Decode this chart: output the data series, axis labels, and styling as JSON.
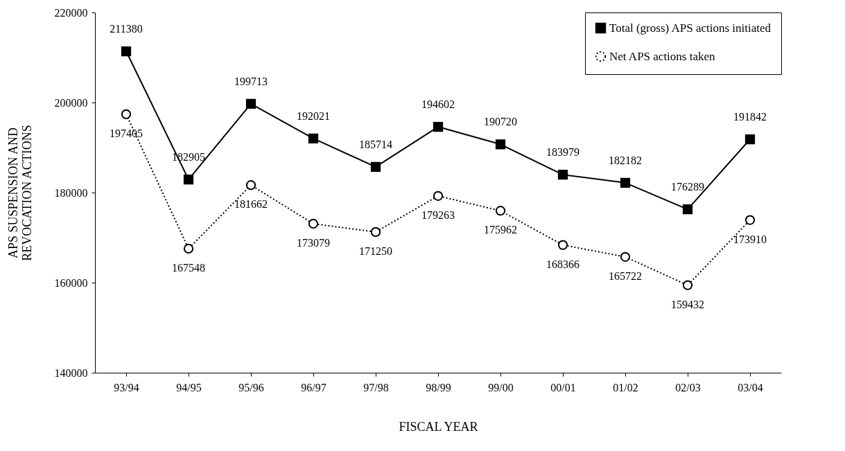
{
  "chart_data": {
    "type": "line",
    "xlabel": "FISCAL YEAR",
    "ylabel": "APS SUSPENSION AND\nREVOCATION ACTIONS",
    "categories": [
      "93/94",
      "94/95",
      "95/96",
      "96/97",
      "97/98",
      "98/99",
      "99/00",
      "00/01",
      "01/02",
      "02/03",
      "03/04"
    ],
    "series": [
      {
        "name": "Total (gross) APS actions initiated",
        "color": "#000000",
        "marker": "square",
        "line_style": "solid",
        "values": [
          211380,
          182905,
          199713,
          192021,
          185714,
          194602,
          190720,
          183979,
          182182,
          176289,
          191842
        ]
      },
      {
        "name": "Net APS actions taken",
        "color": "#000000",
        "marker": "circle",
        "line_style": "dotted",
        "values": [
          197405,
          167548,
          181662,
          173079,
          171250,
          179263,
          175962,
          168366,
          165722,
          159432,
          173910
        ]
      }
    ],
    "ylim": [
      140000,
      220000
    ],
    "yticks": [
      140000,
      160000,
      180000,
      200000,
      220000
    ],
    "grid": false,
    "legend": "top right",
    "data_labels": true
  }
}
